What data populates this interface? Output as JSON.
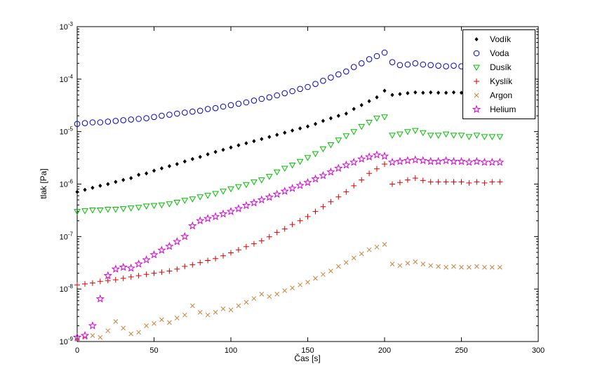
{
  "figure": {
    "background": "#ffffff"
  },
  "chart_data": {
    "type": "scatter",
    "title": "",
    "xlabel": "Čas [s]",
    "ylabel": "tlak [Pa]",
    "xlim": [
      0,
      300
    ],
    "ylim": [
      1e-09,
      0.001
    ],
    "y_scale": "log",
    "grid": false,
    "legend_position": "top-right",
    "xticks": [
      0,
      50,
      100,
      150,
      200,
      250,
      300
    ],
    "ytick_exponents": [
      -9,
      -8,
      -7,
      -6,
      -5,
      -4,
      -3
    ],
    "x": [
      0,
      5,
      10,
      15,
      20,
      25,
      30,
      35,
      40,
      45,
      50,
      55,
      60,
      65,
      70,
      75,
      80,
      85,
      90,
      95,
      100,
      105,
      110,
      115,
      120,
      125,
      130,
      135,
      140,
      145,
      150,
      155,
      160,
      165,
      170,
      175,
      180,
      185,
      190,
      195,
      200,
      205,
      210,
      215,
      220,
      225,
      230,
      235,
      240,
      245,
      250,
      255,
      260,
      265,
      270,
      275
    ],
    "series": [
      {
        "name": "Vodík",
        "marker": "diamond",
        "color": "#000000",
        "values": [
          7.1e-07,
          7.8e-07,
          8.5e-07,
          9.3e-07,
          1e-06,
          1.1e-06,
          1.2e-06,
          1.3e-06,
          1.5e-06,
          1.6e-06,
          1.8e-06,
          2e-06,
          2.2e-06,
          2.4e-06,
          2.7e-06,
          3e-06,
          3.3e-06,
          3.7e-06,
          4.1e-06,
          4.5e-06,
          5e-06,
          5.5e-06,
          6e-06,
          6.6e-06,
          7.2e-06,
          7.9e-06,
          8.7e-06,
          9.5e-06,
          1.05e-05,
          1.15e-05,
          1.26e-05,
          1.4e-05,
          1.6e-05,
          1.8e-05,
          2e-05,
          2.2e-05,
          2.7e-05,
          3.2e-05,
          3.8e-05,
          4.5e-05,
          6e-05,
          5e-05,
          5.2e-05,
          5.4e-05,
          5.6e-05,
          5.5e-05,
          5.6e-05,
          5.5e-05,
          5.5e-05,
          5.6e-05,
          5.5e-05,
          5.5e-05,
          5.6e-05,
          5.5e-05,
          5.5e-05,
          5.5e-05
        ]
      },
      {
        "name": "Voda",
        "marker": "circle",
        "color": "#0000C8",
        "values": [
          1.4e-05,
          1.45e-05,
          1.5e-05,
          1.5e-05,
          1.55e-05,
          1.6e-05,
          1.65e-05,
          1.7e-05,
          1.75e-05,
          1.8e-05,
          1.9e-05,
          2e-05,
          2.1e-05,
          2.2e-05,
          2.3e-05,
          2.4e-05,
          2.5e-05,
          2.7e-05,
          2.8e-05,
          3e-05,
          3.2e-05,
          3.4e-05,
          3.6e-05,
          3.9e-05,
          4.2e-05,
          4.5e-05,
          4.9e-05,
          5.4e-05,
          5.9e-05,
          6.5e-05,
          7.1e-05,
          8.1e-05,
          9.3e-05,
          0.000107,
          0.000123,
          0.00014,
          0.00017,
          0.0002,
          0.00024,
          0.000275,
          0.00032,
          0.00021,
          0.000185,
          0.00019,
          0.0002,
          0.00019,
          0.000185,
          0.00018,
          0.000175,
          0.00018,
          0.000175,
          0.00017,
          0.000175,
          0.00017,
          0.00017,
          0.00017
        ]
      },
      {
        "name": "Dusík",
        "marker": "triangle-down",
        "color": "#00BE00",
        "values": [
          3e-07,
          3.1e-07,
          3.2e-07,
          3.2e-07,
          3.3e-07,
          3.3e-07,
          3.4e-07,
          3.5e-07,
          3.6e-07,
          3.8e-07,
          3.9e-07,
          4e-07,
          4.2e-07,
          4.5e-07,
          4.9e-07,
          5.2e-07,
          5.7e-07,
          6.1e-07,
          6.6e-07,
          7.3e-07,
          8.1e-07,
          8.9e-07,
          9.8e-07,
          1.1e-06,
          1.2e-06,
          1.4e-06,
          1.7e-06,
          2e-06,
          2.3e-06,
          2.7e-06,
          3.2e-06,
          3.8e-06,
          4.7e-06,
          5.6e-06,
          6.9e-06,
          8.3e-06,
          1e-05,
          1.25e-05,
          1.5e-05,
          1.8e-05,
          1.9e-05,
          8.5e-06,
          9e-06,
          1e-05,
          1.05e-05,
          9.5e-06,
          8.5e-06,
          8.5e-06,
          9e-06,
          8.5e-06,
          8.5e-06,
          8e-06,
          8.5e-06,
          8e-06,
          8e-06,
          8e-06
        ]
      },
      {
        "name": "Kyslík",
        "marker": "plus",
        "color": "#DD0000",
        "values": [
          1.2e-08,
          1.25e-08,
          1.3e-08,
          1.4e-08,
          1.45e-08,
          1.5e-08,
          1.6e-08,
          1.7e-08,
          1.8e-08,
          1.9e-08,
          2e-08,
          2.1e-08,
          2.2e-08,
          2.4e-08,
          2.7e-08,
          2.9e-08,
          3.2e-08,
          3.5e-08,
          3.8e-08,
          4.3e-08,
          4.9e-08,
          5.6e-08,
          6.4e-08,
          7.3e-08,
          8.3e-08,
          9.9e-08,
          1.2e-07,
          1.4e-07,
          1.7e-07,
          2e-07,
          2.4e-07,
          3e-07,
          3.7e-07,
          4.6e-07,
          5.7e-07,
          7.1e-07,
          9.3e-07,
          1.2e-06,
          1.6e-06,
          1.95e-06,
          2.4e-06,
          1e-06,
          1.07e-06,
          1.2e-06,
          1.3e-06,
          1.17e-06,
          1.1e-06,
          1.1e-06,
          1.1e-06,
          1.1e-06,
          1.1e-06,
          1.05e-06,
          1.1e-06,
          1.05e-06,
          1.1e-06,
          1.1e-06
        ]
      },
      {
        "name": "Argon",
        "marker": "x",
        "color": "#C8823C",
        "values": [
          1.1e-09,
          1.2e-09,
          1.3e-09,
          1.2e-09,
          1.6e-09,
          2.4e-09,
          1.8e-09,
          1.4e-09,
          1.5e-09,
          2e-09,
          2.2e-09,
          2.6e-09,
          2.3e-09,
          2.8e-09,
          3.2e-09,
          4.8e-09,
          3.6e-09,
          3.2e-09,
          3.6e-09,
          4.2e-09,
          4e-09,
          4.8e-09,
          5.6e-09,
          6.6e-09,
          8e-09,
          7.2e-09,
          8e-09,
          9.3e-09,
          1.05e-08,
          1.2e-08,
          1.35e-08,
          1.6e-08,
          1.9e-08,
          2.2e-08,
          2.7e-08,
          3.2e-08,
          3.9e-08,
          4.7e-08,
          5.6e-08,
          6.3e-08,
          7.1e-08,
          3e-08,
          2.8e-08,
          3.1e-08,
          3.3e-08,
          3e-08,
          2.8e-08,
          2.7e-08,
          2.6e-08,
          2.7e-08,
          2.6e-08,
          2.6e-08,
          2.7e-08,
          2.6e-08,
          2.6e-08,
          2.6e-08
        ]
      },
      {
        "name": "Helium",
        "marker": "pentagram",
        "color": "#D400D4",
        "values": [
          1.2e-09,
          1.3e-09,
          2e-09,
          6.5e-09,
          1.8e-08,
          2.4e-08,
          2.6e-08,
          2.5e-08,
          3e-08,
          3.6e-08,
          4.5e-08,
          5.5e-08,
          6.5e-08,
          8e-08,
          1e-07,
          1.6e-07,
          2e-07,
          2.2e-07,
          2.4e-07,
          2.7e-07,
          3e-07,
          3.4e-07,
          3.9e-07,
          4.4e-07,
          5e-07,
          5.6e-07,
          6.4e-07,
          7.3e-07,
          8.3e-07,
          9.4e-07,
          1.07e-06,
          1.25e-06,
          1.45e-06,
          1.7e-06,
          2e-06,
          2.3e-06,
          2.6e-06,
          3e-06,
          3.3e-06,
          3.6e-06,
          3.4e-06,
          2.6e-06,
          2.7e-06,
          2.8e-06,
          2.9e-06,
          2.8e-06,
          2.7e-06,
          2.7e-06,
          2.8e-06,
          2.7e-06,
          2.7e-06,
          2.6e-06,
          2.7e-06,
          2.6e-06,
          2.6e-06,
          2.6e-06
        ]
      }
    ]
  }
}
